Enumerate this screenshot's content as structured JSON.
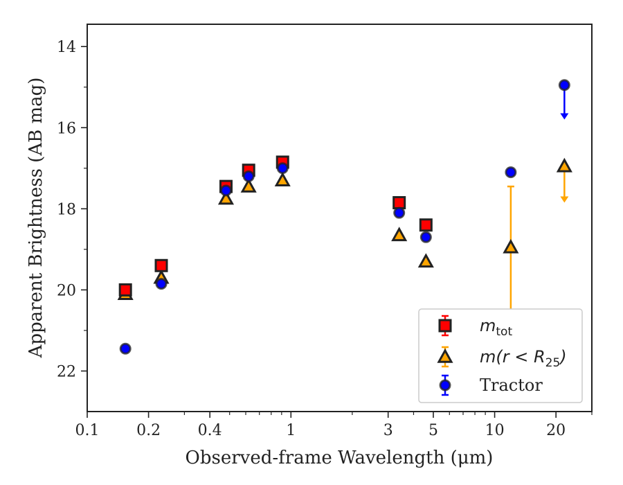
{
  "chart_data": {
    "type": "scatter",
    "xlabel": "Observed-frame Wavelength (μm)",
    "ylabel": "Apparent Brightness (AB mag)",
    "x_scale": "log",
    "y_inverted": true,
    "xlim": [
      0.1,
      30
    ],
    "ylim": [
      23,
      13.45
    ],
    "x_ticks": [
      {
        "value": 0.1,
        "label": "0.1"
      },
      {
        "value": 0.2,
        "label": "0.2"
      },
      {
        "value": 0.4,
        "label": "0.4"
      },
      {
        "value": 1,
        "label": "1"
      },
      {
        "value": 3,
        "label": "3"
      },
      {
        "value": 5,
        "label": "5"
      },
      {
        "value": 10,
        "label": "10"
      },
      {
        "value": 20,
        "label": "20"
      }
    ],
    "y_ticks": [
      {
        "value": 14,
        "label": "14"
      },
      {
        "value": 16,
        "label": "16"
      },
      {
        "value": 18,
        "label": "18"
      },
      {
        "value": 20,
        "label": "20"
      },
      {
        "value": 22,
        "label": "22"
      }
    ],
    "legend_position": "bottom-right",
    "series": [
      {
        "name": "m_tot",
        "legend_label": "mtot",
        "marker": "square",
        "color": "#ff0000",
        "edge_color": "#222222",
        "points": [
          {
            "x": 0.154,
            "y": 20.0
          },
          {
            "x": 0.231,
            "y": 19.4
          },
          {
            "x": 0.48,
            "y": 17.45
          },
          {
            "x": 0.62,
            "y": 17.05
          },
          {
            "x": 0.91,
            "y": 16.85
          },
          {
            "x": 3.4,
            "y": 17.85
          },
          {
            "x": 4.6,
            "y": 18.4
          }
        ]
      },
      {
        "name": "m(r<R25)",
        "legend_label": "m(r < R25)",
        "marker": "triangle",
        "color": "#ffa500",
        "edge_color": "#222222",
        "points": [
          {
            "x": 0.154,
            "y": 20.1
          },
          {
            "x": 0.231,
            "y": 19.7
          },
          {
            "x": 0.48,
            "y": 17.75
          },
          {
            "x": 0.62,
            "y": 17.45
          },
          {
            "x": 0.91,
            "y": 17.3
          },
          {
            "x": 3.4,
            "y": 18.65
          },
          {
            "x": 4.6,
            "y": 19.3
          },
          {
            "x": 12.0,
            "y": 18.95,
            "err_low": 17.45,
            "err_high": 20.55
          },
          {
            "x": 22.0,
            "y": 16.95,
            "upper_limit": true,
            "arrow_to": 17.85
          }
        ]
      },
      {
        "name": "Tractor",
        "legend_label": "Tractor",
        "marker": "circle",
        "color": "#0000ff",
        "edge_color": "#222222",
        "points": [
          {
            "x": 0.154,
            "y": 21.45
          },
          {
            "x": 0.231,
            "y": 19.85
          },
          {
            "x": 0.48,
            "y": 17.55
          },
          {
            "x": 0.62,
            "y": 17.2
          },
          {
            "x": 0.91,
            "y": 17.0
          },
          {
            "x": 3.4,
            "y": 18.1
          },
          {
            "x": 4.6,
            "y": 18.7
          },
          {
            "x": 12.0,
            "y": 17.1
          },
          {
            "x": 22.0,
            "y": 14.95,
            "upper_limit": true,
            "arrow_to": 15.8
          }
        ]
      }
    ]
  }
}
